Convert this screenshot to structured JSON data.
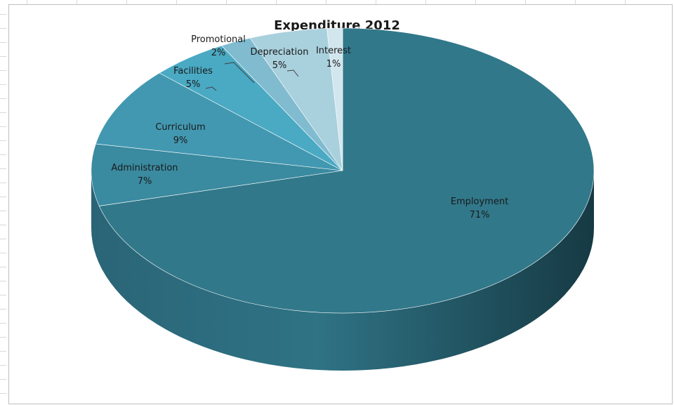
{
  "chart_data": {
    "type": "pie",
    "title": "Expenditure 2012",
    "slices": [
      {
        "label": "Employment",
        "percent_label": "71%",
        "value": 71,
        "color": "#31788a"
      },
      {
        "label": "Administration",
        "percent_label": "7%",
        "value": 7,
        "color": "#3a8aa0"
      },
      {
        "label": "Curriculum",
        "percent_label": "9%",
        "value": 9,
        "color": "#4398b1"
      },
      {
        "label": "Facilities",
        "percent_label": "5%",
        "value": 5,
        "color": "#4aa9c3"
      },
      {
        "label": "Promotional",
        "percent_label": "2%",
        "value": 2,
        "color": "#80bbcf"
      },
      {
        "label": "Depreciation",
        "percent_label": "5%",
        "value": 5,
        "color": "#a9d0dd"
      },
      {
        "label": "Interest",
        "percent_label": "1%",
        "value": 1,
        "color": "#d2e6ee"
      }
    ],
    "legend": "none",
    "style": "3d-pie"
  }
}
